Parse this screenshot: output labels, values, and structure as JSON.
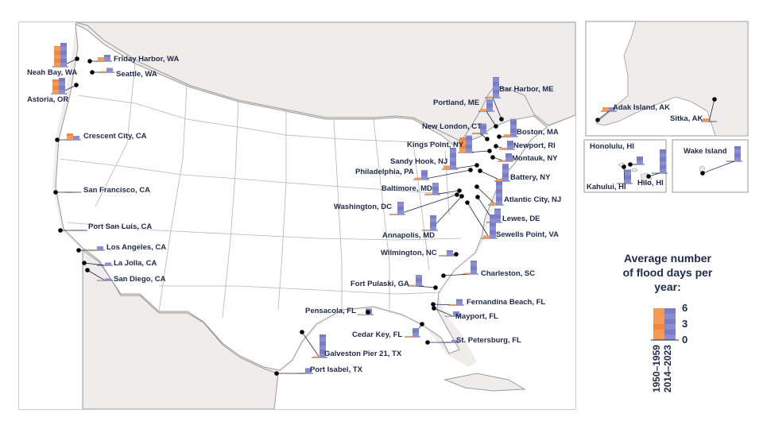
{
  "colors": {
    "early": "#f39b55",
    "early_dark": "#e8792c",
    "recent": "#8a8fd1",
    "recent_dark": "#6c70c0",
    "land_us": "#ffffff",
    "land_other": "#efeceb",
    "border": "#9a9a9a",
    "text": "#1f2a4a",
    "leader": "#1f2a4a"
  },
  "legend": {
    "title_lines": [
      "Average number",
      "of flood days per",
      "year:"
    ],
    "ticks": [
      "6",
      "3",
      "0"
    ],
    "periods": [
      "1950–1959",
      "2014–2023"
    ],
    "max_value": 6
  },
  "insets": {
    "alaska_label": "",
    "hawaii_label": "",
    "wake_label": ""
  },
  "stations": [
    {
      "name": "Neah Bay, WA",
      "early": 5.2,
      "recent": 6.0
    },
    {
      "name": "Friday Harbor, WA",
      "early": 1.0,
      "recent": 1.6
    },
    {
      "name": "Seattle, WA",
      "early": 0.3,
      "recent": 1.1
    },
    {
      "name": "Astoria, OR",
      "early": 3.6,
      "recent": 4.0
    },
    {
      "name": "Crescent City, CA",
      "early": 1.6,
      "recent": 1.0
    },
    {
      "name": "San Francisco, CA",
      "early": 0.0,
      "recent": 0.0
    },
    {
      "name": "Port San Luis, CA",
      "early": 0.2,
      "recent": 0.2
    },
    {
      "name": "Los Angeles, CA",
      "early": 0.2,
      "recent": 1.0
    },
    {
      "name": "La Jolla, CA",
      "early": 0.0,
      "recent": 0.7
    },
    {
      "name": "San Diego, CA",
      "early": 0.1,
      "recent": 0.5
    },
    {
      "name": "Bar Harbor, ME",
      "early": 0.3,
      "recent": 5.2
    },
    {
      "name": "Portland, ME",
      "early": 0.6,
      "recent": 3.0
    },
    {
      "name": "Boston, MA",
      "early": 0.6,
      "recent": 4.5
    },
    {
      "name": "New London, CT",
      "early": 0.2,
      "recent": 2.5
    },
    {
      "name": "Newport, RI",
      "early": 0.4,
      "recent": 2.2
    },
    {
      "name": "Kings Point, NY",
      "early": 3.8,
      "recent": 4.3
    },
    {
      "name": "Montauk, NY",
      "early": 0.3,
      "recent": 2.0
    },
    {
      "name": "Sandy Hook, NJ",
      "early": 0.9,
      "recent": 5.4
    },
    {
      "name": "Battery, NY",
      "early": 0.6,
      "recent": 4.4
    },
    {
      "name": "Philadelphia, PA",
      "early": 0.5,
      "recent": 2.4
    },
    {
      "name": "Baltimore, MD",
      "early": 0.3,
      "recent": 3.0
    },
    {
      "name": "Atlantic City, NJ",
      "early": 0.6,
      "recent": 6.0
    },
    {
      "name": "Washington, DC",
      "early": 0.2,
      "recent": 3.2
    },
    {
      "name": "Lewes, DE",
      "early": 0.3,
      "recent": 3.5
    },
    {
      "name": "Annapolis, MD",
      "early": 0.2,
      "recent": 3.8
    },
    {
      "name": "Sewells Point, VA",
      "early": 0.7,
      "recent": 6.0
    },
    {
      "name": "Wilmington, NC",
      "early": 0.2,
      "recent": 1.4
    },
    {
      "name": "Charleston, SC",
      "early": 0.3,
      "recent": 3.4
    },
    {
      "name": "Fort Pulaski, GA",
      "early": 0.3,
      "recent": 2.8
    },
    {
      "name": "Fernandina Beach, FL",
      "early": 0.2,
      "recent": 1.5
    },
    {
      "name": "Mayport, FL",
      "early": 0.1,
      "recent": 1.2
    },
    {
      "name": "Pensacola, FL",
      "early": 0.1,
      "recent": 1.5
    },
    {
      "name": "Cedar Key, FL",
      "early": 0.2,
      "recent": 2.2
    },
    {
      "name": "St. Petersburg, FL",
      "early": 0.0,
      "recent": 0.6
    },
    {
      "name": "Galveston Pier 21, TX",
      "early": 0.3,
      "recent": 5.8
    },
    {
      "name": "Port Isabel, TX",
      "early": 0.0,
      "recent": 1.3
    },
    {
      "name": "Adak Island, AK",
      "early": 1.0,
      "recent": 1.0
    },
    {
      "name": "Sitka, AK",
      "early": 0.8,
      "recent": 0.0
    },
    {
      "name": "Honolulu, HI",
      "early": 0.0,
      "recent": 2.0
    },
    {
      "name": "Kahului, HI",
      "early": 0.0,
      "recent": 3.5
    },
    {
      "name": "Hilo, HI",
      "early": 0.0,
      "recent": 6.0
    },
    {
      "name": "Wake Island",
      "early": 0.0,
      "recent": 3.8
    }
  ]
}
